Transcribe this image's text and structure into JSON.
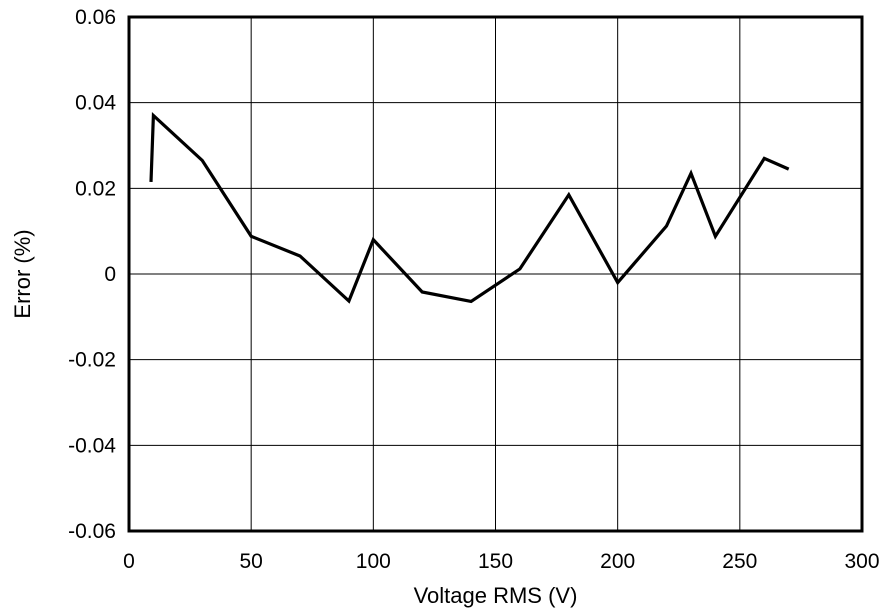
{
  "chart_data": {
    "type": "line",
    "xlabel": "Voltage RMS (V)",
    "ylabel": "Error (%)",
    "xlim": [
      0,
      300
    ],
    "ylim": [
      -0.06,
      0.06
    ],
    "x_ticks": [
      0,
      50,
      100,
      150,
      200,
      250,
      300
    ],
    "x_tick_labels": [
      "0",
      "50",
      "100",
      "150",
      "200",
      "250",
      "300"
    ],
    "y_ticks": [
      -0.06,
      -0.04,
      -0.02,
      0,
      0.02,
      0.04,
      0.06
    ],
    "y_tick_labels": [
      "-0.06",
      "-0.04",
      "-0.02",
      "0",
      "0.02",
      "0.04",
      "0.06"
    ],
    "grid": true,
    "series": [
      {
        "x": [
          9,
          10,
          30,
          50,
          70,
          90,
          100,
          120,
          140,
          160,
          180,
          200,
          220,
          230,
          240,
          260,
          270
        ],
        "y": [
          0.0215,
          0.037,
          0.0265,
          0.0088,
          0.0042,
          -0.0063,
          0.008,
          -0.0042,
          -0.0064,
          0.0012,
          0.0185,
          -0.002,
          0.0112,
          0.0235,
          0.0088,
          0.027,
          0.0245
        ]
      }
    ],
    "colors": {
      "line": "#000000",
      "grid": "#000000",
      "frame": "#000000"
    }
  }
}
